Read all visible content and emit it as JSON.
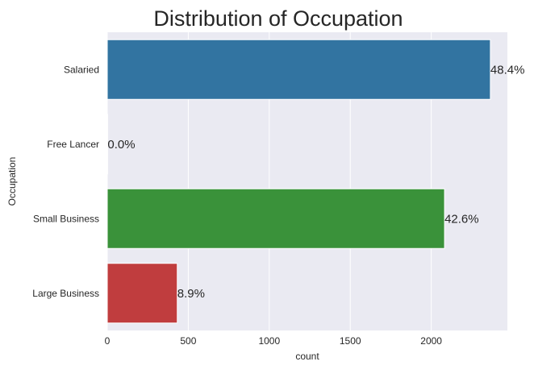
{
  "chart_data": {
    "type": "bar",
    "orientation": "horizontal",
    "title": "Distribution of Occupation",
    "xlabel": "count",
    "ylabel": "Occupation",
    "categories": [
      "Salaried",
      "Free Lancer",
      "Small Business",
      "Large Business"
    ],
    "values": [
      2365,
      2,
      2082,
      432
    ],
    "data_labels": [
      "48.4%",
      "0.0%",
      "42.6%",
      "8.9%"
    ],
    "bar_colors": [
      "#3274a1",
      "#e1812c",
      "#3a923a",
      "#c03d3e"
    ],
    "xlim": [
      0,
      2470
    ],
    "xticks": [
      0,
      500,
      1000,
      1500,
      2000
    ],
    "xtick_labels": [
      "0",
      "500",
      "1000",
      "1500",
      "2000"
    ],
    "grid": true,
    "background": "#eaeaf2",
    "grid_color": "#ffffff"
  }
}
